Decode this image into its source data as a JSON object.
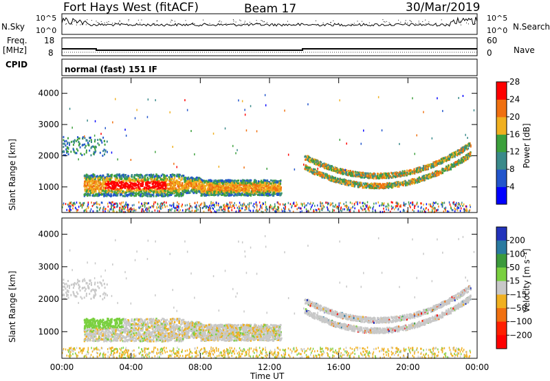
{
  "header": {
    "station": "Fort Hays West (fitACF)",
    "beam": "Beam 17",
    "date": "30/Mar/2019"
  },
  "noise_panel": {
    "left_label": "N.Sky",
    "right_label": "N.Search",
    "left_ticks": [
      "10^5",
      "10^0"
    ],
    "right_ticks": [
      "10^5",
      "10^0"
    ]
  },
  "freq_panel": {
    "left_label_top": "Freq.",
    "left_label_bottom": "[MHz]",
    "right_label": "Nave",
    "left_ticks": [
      "18",
      "8"
    ],
    "right_ticks": [
      "60",
      "0"
    ]
  },
  "cpid": {
    "label": "CPID",
    "mode": "normal (fast) 151 IF"
  },
  "chart_data": [
    {
      "type": "heatmap",
      "parameter": "Power",
      "ylabel": "Slant Range [km]",
      "xlabel": "Time UT",
      "xlim": [
        "00:00",
        "24:00"
      ],
      "ylim": [
        180,
        4500
      ],
      "x_ticks": [
        "00:00",
        "04:00",
        "08:00",
        "12:00",
        "16:00",
        "20:00",
        "00:00"
      ],
      "y_ticks": [
        1000,
        2000,
        3000,
        4000
      ],
      "colorbar": {
        "label": "Power [dB]",
        "ticks": [
          "4",
          "8",
          "12",
          "16",
          "20",
          "24",
          "28"
        ],
        "colors": [
          "#0000ff",
          "#2255cc",
          "#3a8a8a",
          "#3ca03c",
          "#f0b020",
          "#f07010",
          "#ff0000"
        ]
      }
    },
    {
      "type": "heatmap",
      "parameter": "Velocity",
      "ylabel": "Slant Range [km]",
      "xlabel": "Time UT",
      "xlim": [
        "00:00",
        "24:00"
      ],
      "ylim": [
        180,
        4500
      ],
      "x_ticks": [
        "00:00",
        "04:00",
        "08:00",
        "12:00",
        "16:00",
        "20:00",
        "00:00"
      ],
      "y_ticks": [
        1000,
        2000,
        3000,
        4000
      ],
      "colorbar": {
        "label": "Velocity [m s⁻¹]",
        "ticks": [
          "200",
          "100",
          "50",
          "15",
          "−15",
          "−50",
          "−100",
          "−200"
        ],
        "colors": [
          "#2233bb",
          "#2a7aa0",
          "#3c9a3c",
          "#7ad040",
          "#c8c8c8",
          "#f0b020",
          "#f07010",
          "#ff2000",
          "#ff0000"
        ]
      }
    }
  ],
  "time_axis_label": "Time UT",
  "colors": {
    "ground_scatter": "#c8c8c8"
  }
}
